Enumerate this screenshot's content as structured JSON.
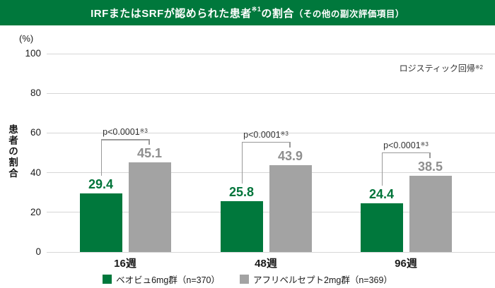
{
  "title": {
    "main": "IRFまたはSRFが認められた患者",
    "sup": "※1",
    "after_sup": "の割合",
    "paren": "（その他の副次評価項目）"
  },
  "annotation": {
    "text": "ロジスティック回帰",
    "sup": "※2"
  },
  "colors": {
    "brand_green": "#00783C",
    "bar_gray": "#A3A3A3",
    "green_value_label": "#00743A",
    "gray_value_label": "#8F8F8F",
    "grid": "#D6D6D6",
    "bracket": "#999999"
  },
  "chart_data": {
    "type": "bar",
    "title": "IRFまたはSRFが認められた患者※1の割合（その他の副次評価項目）",
    "ylabel": "患者の割合",
    "y_unit": "(%)",
    "xlabel": "",
    "ylim": [
      0,
      100
    ],
    "yticks": [
      0,
      20,
      40,
      60,
      80,
      100
    ],
    "grid": true,
    "legend_position": "bottom",
    "annotation": "ロジスティック回帰※2",
    "categories": [
      "16週",
      "48週",
      "96週"
    ],
    "series": [
      {
        "name": "ベオビュ6mg群（n=370）",
        "color": "#00783C",
        "values": [
          29.4,
          25.8,
          24.4
        ]
      },
      {
        "name": "アフリベルセプト2mg群（n=369）",
        "color": "#A3A3A3",
        "values": [
          45.1,
          43.9,
          38.5
        ]
      }
    ],
    "p_labels": [
      {
        "text": "p<0.0001",
        "sup": "※3"
      },
      {
        "text": "p<0.0001",
        "sup": "※3"
      },
      {
        "text": "p<0.0001",
        "sup": "※3"
      }
    ]
  }
}
